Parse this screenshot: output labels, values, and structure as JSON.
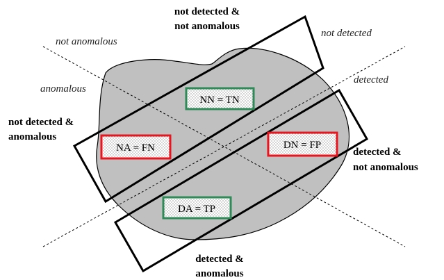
{
  "regions": {
    "nn_top_line1": "not detected &",
    "nn_top_line2": "not anomalous",
    "na_left_line1": "not detected &",
    "na_left_line2": "anomalous",
    "dn_right_line1": "detected &",
    "dn_right_line2": "not anomalous",
    "da_bottom_line1": "detected &",
    "da_bottom_line2": "anomalous"
  },
  "axes": {
    "not_anomalous": "not anomalous",
    "anomalous": "anomalous",
    "not_detected": "not detected",
    "detected": "detected"
  },
  "cells": {
    "nn": "NN = TN",
    "na": "NA = FN",
    "dn": "DN = FP",
    "da": "DA = TP"
  },
  "colors": {
    "blob_fill": "#c0c0c0",
    "true_border": "#2e8b57",
    "false_border": "#e8141e",
    "frame": "#000000"
  }
}
